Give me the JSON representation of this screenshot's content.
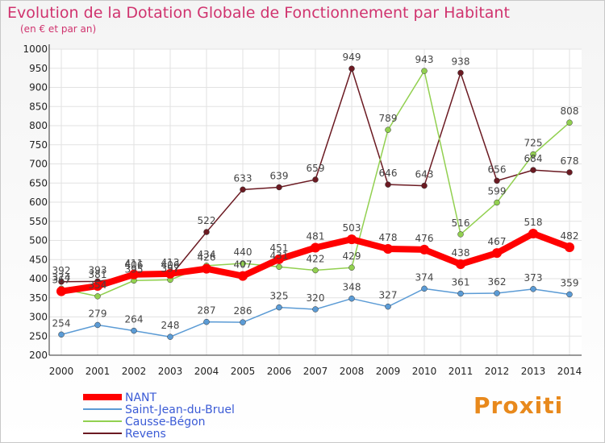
{
  "chart_data": {
    "type": "line",
    "title": "Evolution de la Dotation Globale de Fonctionnement par Habitant",
    "subtitle": "(en € et par an)",
    "categories": [
      "2000",
      "2001",
      "2002",
      "2003",
      "2004",
      "2005",
      "2006",
      "2007",
      "2008",
      "2009",
      "2010",
      "2011",
      "2012",
      "2013",
      "2014"
    ],
    "y_ticks": [
      "200",
      "250",
      "300",
      "350",
      "400",
      "450",
      "500",
      "550",
      "600",
      "650",
      "700",
      "750",
      "800",
      "850",
      "900",
      "950",
      "1000"
    ],
    "ylim": [
      200,
      1000
    ],
    "series": [
      {
        "name": "NANT",
        "color": "#ff0000",
        "values": [
          367,
          381,
          411,
          413,
          426,
          407,
          451,
          481,
          503,
          478,
          476,
          438,
          467,
          518,
          482
        ],
        "labels": [
          "367",
          "381",
          "411",
          "413",
          "426",
          "407",
          "451",
          "481",
          "503",
          "478",
          "476",
          "438",
          "467",
          "518",
          "482"
        ]
      },
      {
        "name": "Saint-Jean-du-Bruel",
        "color": "#5b9bd5",
        "values": [
          254,
          279,
          264,
          248,
          287,
          286,
          325,
          320,
          348,
          327,
          374,
          361,
          362,
          373,
          359
        ],
        "labels": [
          "254",
          "279",
          "264",
          "248",
          "287",
          "286",
          "325",
          "320",
          "348",
          "327",
          "374",
          "361",
          "362",
          "373",
          "359"
        ]
      },
      {
        "name": "Causse-Bégon",
        "color": "#92d050",
        "values": [
          374,
          354,
          395,
          397,
          434,
          440,
          431,
          422,
          429,
          789,
          943,
          516,
          599,
          725,
          808
        ],
        "labels": [
          "374",
          "354",
          "395",
          "397",
          "434",
          "440",
          "431",
          "422",
          "429",
          "789",
          "943",
          "516",
          "599",
          "725",
          "808"
        ]
      },
      {
        "name": "Revens",
        "color": "#6b1a22",
        "values": [
          392,
          393,
          406,
          406,
          522,
          633,
          639,
          659,
          949,
          646,
          643,
          938,
          656,
          684,
          678
        ],
        "labels": [
          "392",
          "393",
          "406",
          "406",
          "522",
          "633",
          "639",
          "659",
          "949",
          "646",
          "643",
          "938",
          "656",
          "684",
          "678"
        ]
      }
    ]
  },
  "logo": {
    "text": "Proxiti"
  }
}
